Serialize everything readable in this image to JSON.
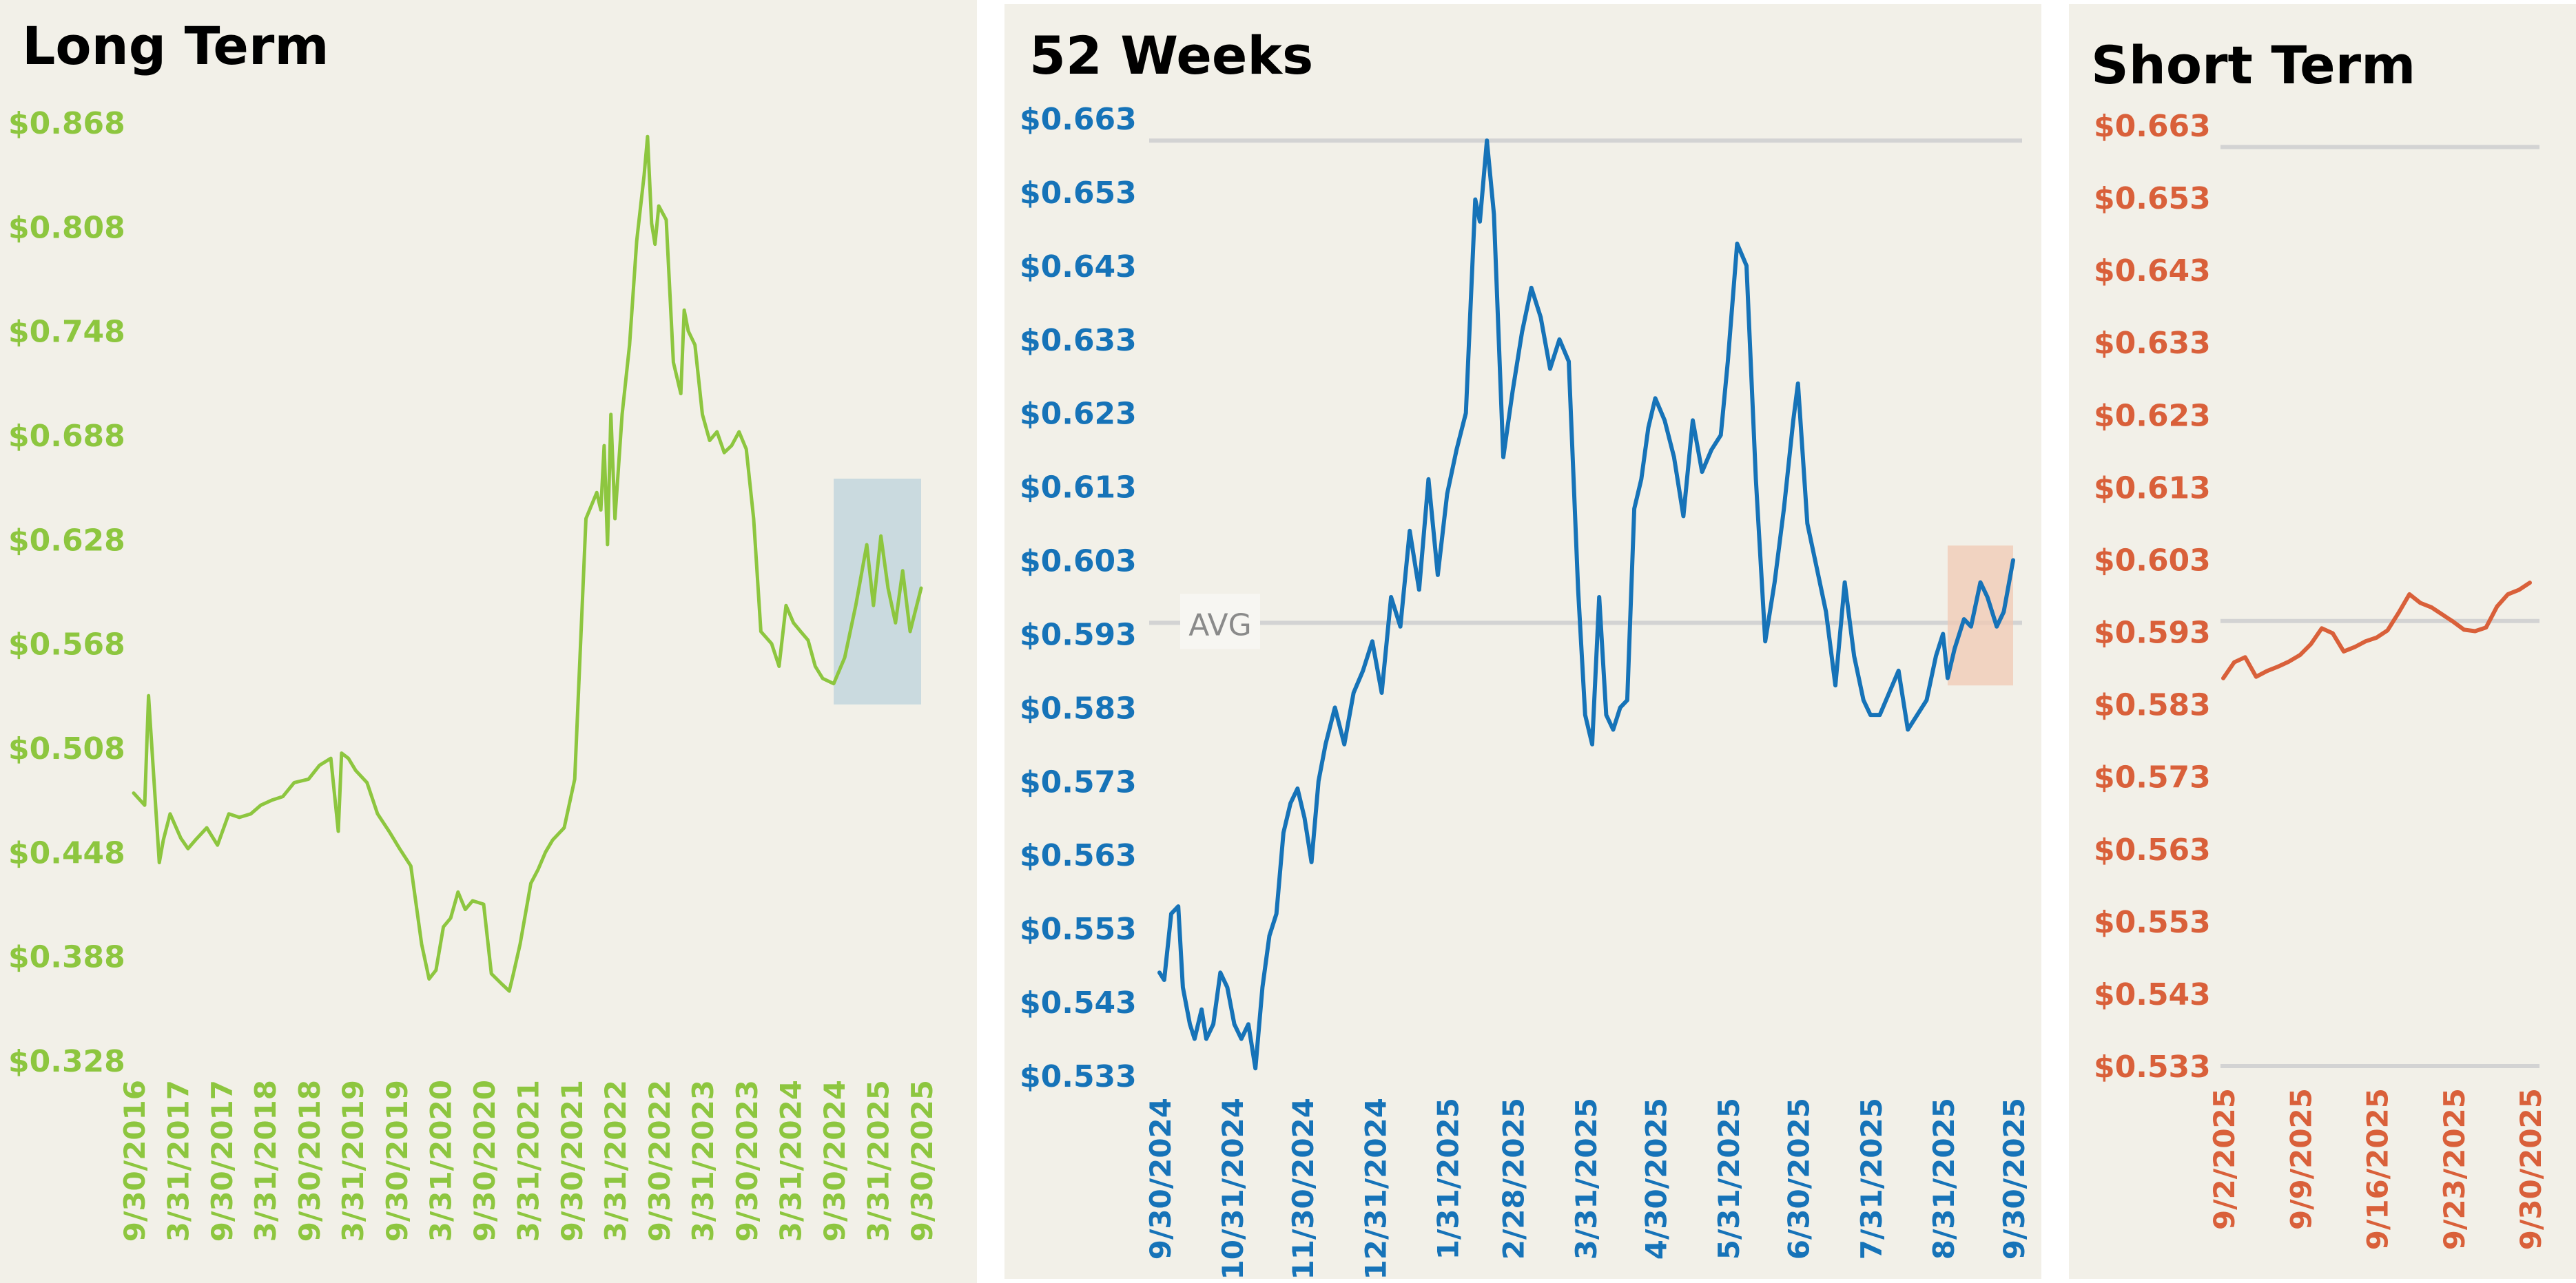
{
  "colors": {
    "panel_bg": "#f2f0e8",
    "long_term": "#8dc63f",
    "weeks52": "#1673b8",
    "short_term": "#d9603a",
    "grid": "#d3d3d3",
    "long_highlight": "#bcd3dc",
    "weeks52_highlight": "#f0c9b4"
  },
  "chart_data": [
    {
      "type": "line",
      "title": "Long Term",
      "ylim": [
        0.328,
        0.868
      ],
      "yticks": [
        "$0.868",
        "$0.808",
        "$0.748",
        "$0.688",
        "$0.628",
        "$0.568",
        "$0.508",
        "$0.448",
        "$0.388",
        "$0.328"
      ],
      "xticks": [
        "9/30/2016",
        "3/31/2017",
        "9/30/2017",
        "3/31/2018",
        "9/30/2018",
        "3/31/2019",
        "9/30/2019",
        "3/31/2020",
        "9/30/2020",
        "3/31/2021",
        "9/30/2021",
        "3/31/2022",
        "9/30/2022",
        "3/31/2023",
        "9/30/2023",
        "3/31/2024",
        "9/30/2024",
        "3/31/2025",
        "9/30/2025"
      ],
      "grid": false,
      "highlight": {
        "from": "9/30/2024",
        "to": "9/30/2025",
        "ymin": 0.533,
        "ymax": 0.663
      },
      "series": [
        {
          "x": [
            "9/30/2016",
            "11/15/2016",
            "12/1/2016",
            "1/15/2017",
            "2/1/2017",
            "3/1/2017",
            "4/15/2017",
            "5/15/2017",
            "6/15/2017",
            "8/1/2017",
            "9/15/2017",
            "11/1/2017",
            "12/15/2017",
            "2/1/2018",
            "3/15/2018",
            "5/1/2018",
            "6/15/2018",
            "8/1/2018",
            "9/30/2018",
            "11/15/2018",
            "1/1/2019",
            "2/1/2019",
            "2/15/2019",
            "3/15/2019",
            "4/15/2019",
            "6/1/2019",
            "7/15/2019",
            "9/1/2019",
            "10/15/2019",
            "12/1/2019",
            "1/15/2020",
            "2/15/2020",
            "3/15/2020",
            "4/15/2020",
            "5/15/2020",
            "6/15/2020",
            "7/15/2020",
            "8/15/2020",
            "9/30/2020",
            "11/1/2020",
            "12/15/2020",
            "1/15/2021",
            "2/1/2021",
            "3/1/2021",
            "4/15/2021",
            "5/15/2021",
            "6/15/2021",
            "7/15/2021",
            "9/1/2021",
            "10/15/2021",
            "12/1/2021",
            "1/15/2022",
            "2/1/2022",
            "2/15/2022",
            "3/1/2022",
            "3/15/2022",
            "4/1/2022",
            "5/1/2022",
            "6/1/2022",
            "7/1/2022",
            "8/1/2022",
            "8/15/2022",
            "9/1/2022",
            "9/15/2022",
            "10/1/2022",
            "11/1/2022",
            "12/1/2022",
            "1/1/2023",
            "1/15/2023",
            "2/1/2023",
            "3/1/2023",
            "4/1/2023",
            "5/1/2023",
            "6/1/2023",
            "7/1/2023",
            "8/1/2023",
            "9/1/2023",
            "10/1/2023",
            "11/1/2023",
            "12/1/2023",
            "1/15/2024",
            "2/15/2024",
            "3/15/2024",
            "4/15/2024",
            "5/15/2024",
            "6/15/2024",
            "7/15/2024",
            "8/15/2024",
            "9/30/2024",
            "11/15/2024",
            "12/31/2024",
            "2/15/2025",
            "3/15/2025",
            "4/15/2025",
            "5/15/2025",
            "6/15/2025",
            "7/15/2025",
            "8/15/2025",
            "9/30/2025"
          ],
          "y": [
            0.482,
            0.475,
            0.538,
            0.442,
            0.455,
            0.47,
            0.456,
            0.45,
            0.455,
            0.462,
            0.452,
            0.47,
            0.468,
            0.47,
            0.475,
            0.478,
            0.48,
            0.488,
            0.49,
            0.498,
            0.502,
            0.46,
            0.505,
            0.502,
            0.495,
            0.488,
            0.47,
            0.46,
            0.45,
            0.44,
            0.395,
            0.375,
            0.38,
            0.405,
            0.41,
            0.425,
            0.415,
            0.42,
            0.418,
            0.378,
            0.372,
            0.368,
            0.378,
            0.395,
            0.43,
            0.438,
            0.448,
            0.455,
            0.462,
            0.49,
            0.64,
            0.655,
            0.645,
            0.682,
            0.625,
            0.7,
            0.64,
            0.7,
            0.74,
            0.8,
            0.838,
            0.86,
            0.81,
            0.798,
            0.82,
            0.812,
            0.73,
            0.712,
            0.76,
            0.748,
            0.74,
            0.7,
            0.685,
            0.69,
            0.678,
            0.682,
            0.69,
            0.68,
            0.64,
            0.575,
            0.568,
            0.555,
            0.59,
            0.58,
            0.575,
            0.57,
            0.555,
            0.548,
            0.545,
            0.56,
            0.59,
            0.625,
            0.59,
            0.63,
            0.6,
            0.58,
            0.61,
            0.575,
            0.6
          ]
        }
      ]
    },
    {
      "type": "line",
      "title": "52 Weeks",
      "ylim": [
        0.533,
        0.663
      ],
      "yticks": [
        "$0.663",
        "$0.653",
        "$0.643",
        "$0.633",
        "$0.623",
        "$0.613",
        "$0.603",
        "$0.593",
        "$0.583",
        "$0.573",
        "$0.563",
        "$0.553",
        "$0.543",
        "$0.533"
      ],
      "xticks": [
        "9/30/2024",
        "10/31/2024",
        "11/30/2024",
        "12/31/2024",
        "1/31/2025",
        "2/28/2025",
        "3/31/2025",
        "4/30/2025",
        "5/31/2025",
        "6/30/2025",
        "7/31/2025",
        "8/31/2025",
        "9/30/2025"
      ],
      "grid": true,
      "hlines": [
        0.66,
        0.5945
      ],
      "avg_label": "AVG",
      "avg_value": 0.5945,
      "highlight": {
        "from": "9/2/2025",
        "to": "9/30/2025",
        "ymin": 0.586,
        "ymax": 0.605
      },
      "series": [
        {
          "x": [
            "9/30/2024",
            "10/2/2024",
            "10/5/2024",
            "10/8/2024",
            "10/10/2024",
            "10/13/2024",
            "10/15/2024",
            "10/18/2024",
            "10/20/2024",
            "10/23/2024",
            "10/26/2024",
            "10/29/2024",
            "11/1/2024",
            "11/4/2024",
            "11/7/2024",
            "11/10/2024",
            "11/13/2024",
            "11/16/2024",
            "11/19/2024",
            "11/22/2024",
            "11/25/2024",
            "11/28/2024",
            "12/1/2024",
            "12/4/2024",
            "12/7/2024",
            "12/10/2024",
            "12/14/2024",
            "12/18/2024",
            "12/22/2024",
            "12/26/2024",
            "12/30/2024",
            "1/3/2025",
            "1/7/2025",
            "1/11/2025",
            "1/15/2025",
            "1/19/2025",
            "1/23/2025",
            "1/27/2025",
            "1/31/2025",
            "2/4/2025",
            "2/8/2025",
            "2/12/2025",
            "2/14/2025",
            "2/17/2025",
            "2/20/2025",
            "2/24/2025",
            "2/28/2025",
            "3/4/2025",
            "3/8/2025",
            "3/12/2025",
            "3/16/2025",
            "3/20/2025",
            "3/24/2025",
            "3/28/2025",
            "3/31/2025",
            "4/3/2025",
            "4/6/2025",
            "4/9/2025",
            "4/12/2025",
            "4/15/2025",
            "4/18/2025",
            "4/21/2025",
            "4/24/2025",
            "4/27/2025",
            "4/30/2025",
            "5/4/2025",
            "5/8/2025",
            "5/12/2025",
            "5/16/2025",
            "5/20/2025",
            "5/24/2025",
            "5/28/2025",
            "5/31/2025",
            "6/4/2025",
            "6/8/2025",
            "6/12/2025",
            "6/16/2025",
            "6/20/2025",
            "6/24/2025",
            "6/28/2025",
            "6/30/2025",
            "7/4/2025",
            "7/8/2025",
            "7/12/2025",
            "7/16/2025",
            "7/20/2025",
            "7/24/2025",
            "7/28/2025",
            "7/31/2025",
            "8/4/2025",
            "8/8/2025",
            "8/12/2025",
            "8/16/2025",
            "8/20/2025",
            "8/24/2025",
            "8/28/2025",
            "8/31/2025",
            "9/2/2025",
            "9/5/2025",
            "9/9/2025",
            "9/12/2025",
            "9/16/2025",
            "9/19/2025",
            "9/23/2025",
            "9/26/2025",
            "9/30/2025"
          ],
          "y": [
            0.547,
            0.546,
            0.555,
            0.556,
            0.545,
            0.54,
            0.538,
            0.542,
            0.538,
            0.54,
            0.547,
            0.545,
            0.54,
            0.538,
            0.54,
            0.534,
            0.545,
            0.552,
            0.555,
            0.566,
            0.57,
            0.572,
            0.568,
            0.562,
            0.573,
            0.578,
            0.583,
            0.578,
            0.585,
            0.588,
            0.592,
            0.585,
            0.598,
            0.594,
            0.607,
            0.599,
            0.614,
            0.601,
            0.612,
            0.618,
            0.623,
            0.652,
            0.649,
            0.66,
            0.65,
            0.617,
            0.626,
            0.634,
            0.64,
            0.636,
            0.629,
            0.633,
            0.63,
            0.599,
            0.582,
            0.578,
            0.598,
            0.582,
            0.58,
            0.583,
            0.584,
            0.61,
            0.614,
            0.621,
            0.625,
            0.622,
            0.617,
            0.609,
            0.622,
            0.615,
            0.618,
            0.62,
            0.63,
            0.646,
            0.643,
            0.614,
            0.592,
            0.6,
            0.61,
            0.622,
            0.627,
            0.608,
            0.602,
            0.596,
            0.586,
            0.6,
            0.59,
            0.584,
            0.582,
            0.582,
            0.585,
            0.588,
            0.58,
            0.582,
            0.584,
            0.59,
            0.593,
            0.587,
            0.591,
            0.595,
            0.594,
            0.6,
            0.598,
            0.594,
            0.596,
            0.603
          ]
        }
      ]
    },
    {
      "type": "line",
      "title": "Short Term",
      "ylim": [
        0.533,
        0.663
      ],
      "yticks": [
        "$0.663",
        "$0.653",
        "$0.643",
        "$0.633",
        "$0.623",
        "$0.613",
        "$0.603",
        "$0.593",
        "$0.583",
        "$0.573",
        "$0.563",
        "$0.553",
        "$0.543",
        "$0.533"
      ],
      "xticks": [
        "9/2/2025",
        "9/9/2025",
        "9/16/2025",
        "9/23/2025",
        "9/30/2025"
      ],
      "grid": true,
      "hlines": [
        0.66,
        0.5945,
        0.533
      ],
      "series": [
        {
          "x": [
            "9/2/2025",
            "9/3/2025",
            "9/4/2025",
            "9/5/2025",
            "9/6/2025",
            "9/7/2025",
            "9/8/2025",
            "9/9/2025",
            "9/10/2025",
            "9/11/2025",
            "9/12/2025",
            "9/13/2025",
            "9/14/2025",
            "9/15/2025",
            "9/16/2025",
            "9/17/2025",
            "9/18/2025",
            "9/19/2025",
            "9/20/2025",
            "9/21/2025",
            "9/22/2025",
            "9/23/2025",
            "9/24/2025",
            "9/25/2025",
            "9/26/2025",
            "9/27/2025",
            "9/28/2025",
            "9/29/2025",
            "9/30/2025"
          ],
          "y": [
            0.5866,
            0.5888,
            0.5895,
            0.5868,
            0.5876,
            0.5882,
            0.5889,
            0.5898,
            0.5913,
            0.5935,
            0.5928,
            0.5903,
            0.5909,
            0.5917,
            0.5922,
            0.5932,
            0.5956,
            0.5982,
            0.597,
            0.5964,
            0.5954,
            0.5944,
            0.5933,
            0.5931,
            0.5936,
            0.5965,
            0.5982,
            0.5988,
            0.5998
          ]
        }
      ]
    }
  ]
}
